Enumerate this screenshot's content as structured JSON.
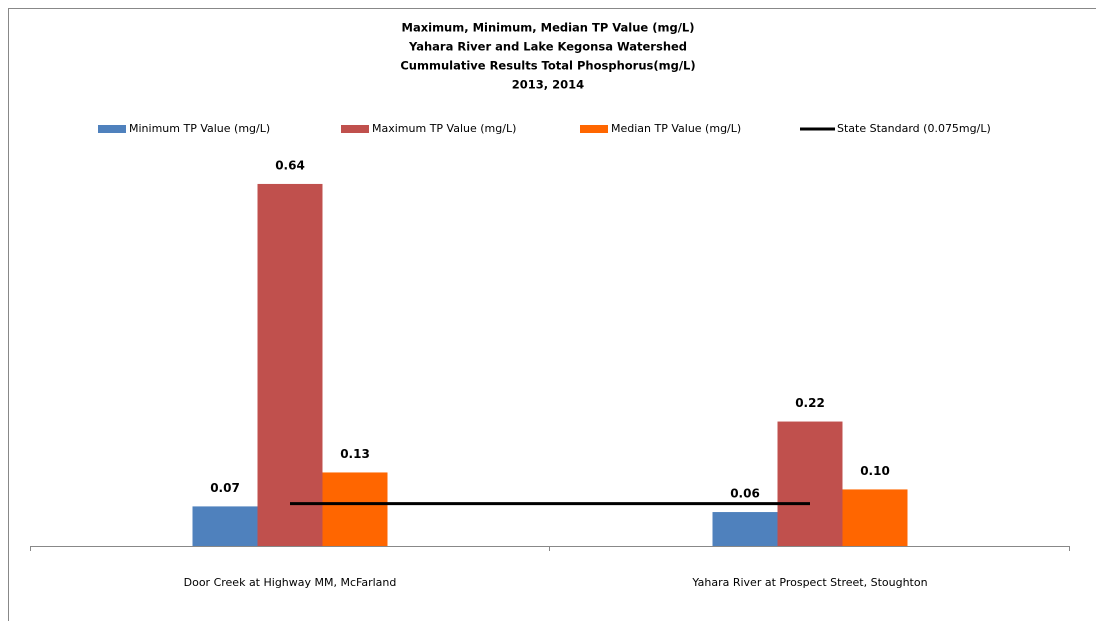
{
  "chart_data": {
    "type": "bar",
    "title": [
      "Maximum, Minimum, Median TP Value (mg/L)",
      "Yahara River and Lake Kegonsa Watershed",
      "Cummulative Results Total Phosphorus(mg/L)",
      "2013, 2014"
    ],
    "categories": [
      "Door Creek at Highway MM, McFarland",
      "Yahara River at Prospect Street, Stoughton"
    ],
    "series": [
      {
        "name": "Minimum TP Value (mg/L)",
        "color": "#4f81bd",
        "values": [
          0.07,
          0.06
        ],
        "value_labels": [
          "0.07",
          "0.06"
        ]
      },
      {
        "name": "Maximum TP Value (mg/L)",
        "color": "#c0504d",
        "values": [
          0.64,
          0.22
        ],
        "value_labels": [
          "0.64",
          "0.22"
        ]
      },
      {
        "name": "Median TP Value (mg/L)",
        "color": "#ff6600",
        "values": [
          0.13,
          0.1
        ],
        "value_labels": [
          "0.13",
          "0.10"
        ]
      },
      {
        "name": "State Standard (0.075mg/L)",
        "color": "#000000",
        "type": "line",
        "values": [
          0.075,
          0.075
        ]
      }
    ],
    "ylim": [
      0,
      0.7
    ],
    "legend": "top"
  }
}
